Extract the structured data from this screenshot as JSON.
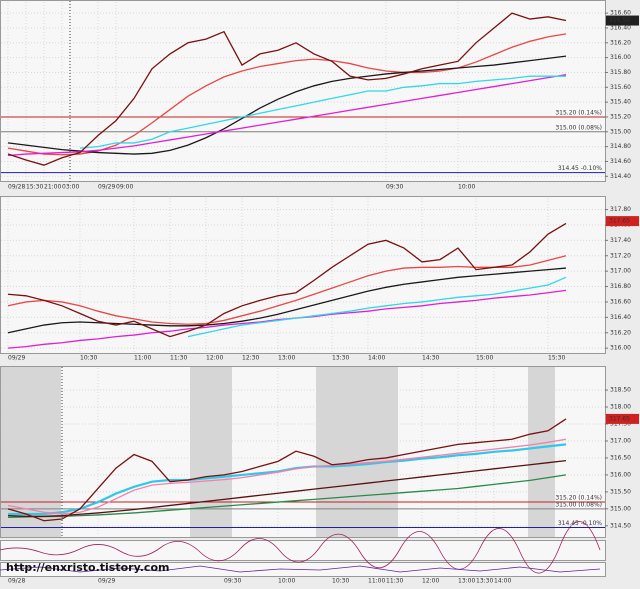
{
  "chart_data": [
    {
      "type": "line",
      "categories": [
        "09/28",
        "15:30",
        "21:00",
        "03:00",
        null,
        "09/29",
        "09:00",
        null,
        null,
        null,
        null,
        null,
        null,
        null,
        null,
        null,
        null,
        null,
        null,
        null,
        null,
        "09:30",
        null,
        null,
        null,
        "10:00",
        null,
        null,
        null,
        null,
        null,
        null
      ],
      "series": [
        {
          "color": "#e84848",
          "values": [
            314.78,
            314.74,
            314.7,
            314.69,
            314.7,
            314.74,
            314.82,
            314.95,
            315.12,
            315.3,
            315.48,
            315.62,
            315.74,
            315.82,
            315.88,
            315.92,
            315.96,
            315.98,
            315.96,
            315.92,
            315.86,
            315.82,
            315.8,
            315.8,
            315.82,
            315.86,
            315.94,
            316.04,
            316.14,
            316.22,
            316.28,
            316.32
          ]
        },
        {
          "color": "#1a1a1a",
          "values": [
            314.85,
            314.82,
            314.79,
            314.76,
            314.74,
            314.72,
            314.71,
            314.7,
            314.71,
            314.75,
            314.82,
            314.92,
            315.04,
            315.18,
            315.32,
            315.44,
            315.54,
            315.62,
            315.68,
            315.72,
            315.75,
            315.78,
            315.8,
            315.82,
            315.84,
            315.86,
            315.88,
            315.9,
            315.93,
            315.96,
            315.99,
            316.02
          ]
        },
        {
          "color": "#e020d0",
          "values": [
            314.68,
            314.7,
            314.71,
            314.72,
            314.73,
            314.75,
            314.78,
            314.81,
            314.85,
            314.89,
            314.93,
            314.97,
            315.01,
            315.05,
            315.09,
            315.13,
            315.17,
            315.21,
            315.25,
            315.29,
            315.33,
            315.37,
            315.41,
            315.45,
            315.49,
            315.53,
            315.57,
            315.61,
            315.65,
            315.69,
            315.73,
            315.77
          ]
        },
        {
          "color": "#30d8e8",
          "values": [
            null,
            null,
            null,
            null,
            314.78,
            314.8,
            314.85,
            314.85,
            314.9,
            315.0,
            315.05,
            315.1,
            315.15,
            315.2,
            315.25,
            315.3,
            315.35,
            315.4,
            315.45,
            315.5,
            315.55,
            315.55,
            315.6,
            315.62,
            315.65,
            315.65,
            315.68,
            315.7,
            315.72,
            315.75,
            315.75,
            315.75
          ]
        },
        {
          "color": "#7a1010",
          "values": [
            314.7,
            314.62,
            314.55,
            314.65,
            314.72,
            314.95,
            315.15,
            315.45,
            315.85,
            316.05,
            316.2,
            316.25,
            316.35,
            315.9,
            316.05,
            316.1,
            316.2,
            316.05,
            315.95,
            315.75,
            315.7,
            315.72,
            315.78,
            315.85,
            315.9,
            315.95,
            316.2,
            316.4,
            316.6,
            316.52,
            316.55,
            316.5
          ]
        }
      ],
      "ylim": [
        314.35,
        316.75
      ],
      "yticks": [
        {
          "value": 314.4,
          "label": "314.40"
        },
        {
          "value": 314.6,
          "label": "314.60"
        },
        {
          "value": 314.8,
          "label": "314.80"
        },
        {
          "value": 315,
          "label": "315.00"
        },
        {
          "value": 315.2,
          "label": "315.20"
        },
        {
          "value": 315.4,
          "label": "315.40"
        },
        {
          "value": 315.6,
          "label": "315.60"
        },
        {
          "value": 315.8,
          "label": "315.80"
        },
        {
          "value": 316,
          "label": "316.00"
        },
        {
          "value": 316.2,
          "label": "316.20"
        },
        {
          "value": 316.4,
          "label": "316.40"
        },
        {
          "value": 316.6,
          "label": "316.60"
        }
      ],
      "reference_lines": [
        {
          "value": 315.2,
          "label": "315.20 (0.14%)",
          "color": "#c02020"
        },
        {
          "value": 315,
          "label": "315.00 (0.08%)",
          "color": "#808080"
        },
        {
          "value": 314.45,
          "label": "314.45 -0.10%",
          "color": "#2020a0"
        }
      ],
      "price_tag": {
        "value": 316.5,
        "label": "316.50",
        "color": "#202020"
      },
      "grid": true
    },
    {
      "type": "line",
      "categories": [
        "09/29",
        null,
        null,
        null,
        "10:30",
        null,
        null,
        "11:00",
        null,
        "11:30",
        null,
        "12:00",
        null,
        "12:30",
        null,
        "13:00",
        null,
        null,
        "13:30",
        null,
        "14:00",
        null,
        null,
        "14:30",
        null,
        null,
        "15:00",
        null,
        null,
        null,
        "15:30",
        null
      ],
      "series": [
        {
          "color": "#e020d0",
          "values": [
            316.0,
            316.02,
            316.05,
            316.07,
            316.1,
            316.12,
            316.15,
            316.17,
            316.2,
            316.22,
            316.25,
            316.27,
            316.3,
            316.32,
            316.34,
            316.37,
            316.39,
            316.41,
            316.44,
            316.46,
            316.48,
            316.51,
            316.53,
            316.55,
            316.58,
            316.6,
            316.62,
            316.65,
            316.67,
            316.69,
            316.72,
            316.75
          ]
        },
        {
          "color": "#30d8e8",
          "values": [
            null,
            null,
            null,
            null,
            null,
            null,
            null,
            null,
            null,
            null,
            316.15,
            316.2,
            316.25,
            316.3,
            316.33,
            316.36,
            316.39,
            316.42,
            316.45,
            316.48,
            316.52,
            316.55,
            316.58,
            316.6,
            316.63,
            316.66,
            316.68,
            316.7,
            316.74,
            316.78,
            316.82,
            316.92
          ]
        },
        {
          "color": "#1a1a1a",
          "values": [
            316.2,
            316.25,
            316.3,
            316.33,
            316.34,
            316.33,
            316.32,
            316.31,
            316.3,
            316.29,
            316.29,
            316.3,
            316.32,
            316.35,
            316.39,
            316.44,
            316.5,
            316.56,
            316.62,
            316.68,
            316.74,
            316.79,
            316.83,
            316.86,
            316.89,
            316.92,
            316.94,
            316.96,
            316.98,
            317.0,
            317.02,
            317.04
          ]
        },
        {
          "color": "#e84848",
          "values": [
            316.55,
            316.6,
            316.62,
            316.6,
            316.55,
            316.48,
            316.42,
            316.38,
            316.34,
            316.32,
            316.31,
            316.32,
            316.36,
            316.42,
            316.48,
            316.55,
            316.62,
            316.7,
            316.78,
            316.86,
            316.94,
            317.0,
            317.04,
            317.05,
            317.05,
            317.06,
            317.05,
            317.05,
            317.05,
            317.08,
            317.14,
            317.2
          ]
        },
        {
          "color": "#7a1010",
          "values": [
            316.7,
            316.68,
            316.62,
            316.55,
            316.45,
            316.35,
            316.3,
            316.35,
            316.25,
            316.15,
            316.22,
            316.3,
            316.45,
            316.55,
            316.62,
            316.68,
            316.72,
            316.88,
            317.05,
            317.2,
            317.35,
            317.4,
            317.3,
            317.12,
            317.15,
            317.3,
            317.02,
            317.05,
            317.08,
            317.25,
            317.48,
            317.62
          ]
        }
      ],
      "ylim": [
        315.95,
        317.95
      ],
      "yticks": [
        {
          "value": 316,
          "label": "316.00"
        },
        {
          "value": 316.2,
          "label": "316.20"
        },
        {
          "value": 316.4,
          "label": "316.40"
        },
        {
          "value": 316.6,
          "label": "316.60"
        },
        {
          "value": 316.8,
          "label": "316.80"
        },
        {
          "value": 317,
          "label": "317.00"
        },
        {
          "value": 317.2,
          "label": "317.20"
        },
        {
          "value": 317.4,
          "label": "317.40"
        },
        {
          "value": 317.6,
          "label": "317.60"
        },
        {
          "value": 317.8,
          "label": "317.80"
        }
      ],
      "price_tag": {
        "value": 317.65,
        "label": "317.65",
        "color": "#d02020"
      },
      "grid": true
    },
    {
      "type": "line",
      "categories": [
        "09/28",
        null,
        null,
        null,
        null,
        "09/29",
        null,
        null,
        null,
        null,
        null,
        null,
        "09:30",
        null,
        null,
        "10:00",
        null,
        null,
        "10:30",
        null,
        "11:00",
        "11:30",
        null,
        "12:00",
        null,
        "13:00",
        "13:30",
        "14:00",
        null,
        null,
        null,
        null
      ],
      "series": [
        {
          "color": "#2a8a4a",
          "values": [
            314.75,
            314.76,
            314.77,
            314.78,
            314.8,
            314.82,
            314.85,
            314.88,
            314.92,
            314.96,
            315.0,
            315.04,
            315.08,
            315.12,
            315.16,
            315.2,
            315.24,
            315.28,
            315.32,
            315.36,
            315.4,
            315.44,
            315.48,
            315.52,
            315.56,
            315.6,
            315.66,
            315.72,
            315.78,
            315.84,
            315.92,
            316.0
          ]
        },
        {
          "color": "#5a1010",
          "values": [
            314.8,
            314.78,
            314.78,
            314.8,
            314.84,
            314.88,
            314.93,
            314.98,
            315.04,
            315.1,
            315.16,
            315.22,
            315.28,
            315.34,
            315.4,
            315.46,
            315.52,
            315.58,
            315.64,
            315.7,
            315.76,
            315.82,
            315.88,
            315.94,
            316.0,
            316.06,
            316.12,
            316.18,
            316.24,
            316.3,
            316.36,
            316.42
          ]
        },
        {
          "color": "#30c8e8",
          "values": [
            314.85,
            314.85,
            314.85,
            314.9,
            315.0,
            315.2,
            315.45,
            315.65,
            315.8,
            315.85,
            315.85,
            315.9,
            315.95,
            316.0,
            316.05,
            316.1,
            316.2,
            316.25,
            316.25,
            316.28,
            316.32,
            316.38,
            316.42,
            316.48,
            316.52,
            316.58,
            316.62,
            316.68,
            316.72,
            316.78,
            316.84,
            316.9
          ]
        },
        {
          "color": "#f080b0",
          "values": [
            315.1,
            315.0,
            314.9,
            314.85,
            314.9,
            315.05,
            315.3,
            315.55,
            315.7,
            315.75,
            315.78,
            315.82,
            315.86,
            315.92,
            316.0,
            316.08,
            316.18,
            316.25,
            316.28,
            316.32,
            316.36,
            316.4,
            316.46,
            316.52,
            316.58,
            316.64,
            316.7,
            316.76,
            316.82,
            316.88,
            316.96,
            317.05
          ]
        },
        {
          "color": "#7a1010",
          "values": [
            315.0,
            314.85,
            314.65,
            314.7,
            315.0,
            315.6,
            316.2,
            316.6,
            316.4,
            315.8,
            315.85,
            315.95,
            316.0,
            316.1,
            316.25,
            316.4,
            316.7,
            316.55,
            316.3,
            316.35,
            316.45,
            316.5,
            316.6,
            316.7,
            316.8,
            316.9,
            316.95,
            317.0,
            317.05,
            317.2,
            317.3,
            317.65
          ]
        }
      ],
      "ylim": [
        314.2,
        319.15
      ],
      "yticks": [
        {
          "value": 314.5,
          "label": "314.50"
        },
        {
          "value": 315,
          "label": "315.00"
        },
        {
          "value": 315.5,
          "label": "315.50"
        },
        {
          "value": 316,
          "label": "316.00"
        },
        {
          "value": 316.5,
          "label": "316.50"
        },
        {
          "value": 317,
          "label": "317.00"
        },
        {
          "value": 317.5,
          "label": "317.50"
        },
        {
          "value": 318,
          "label": "318.00"
        },
        {
          "value": 318.5,
          "label": "318.50"
        }
      ],
      "reference_lines": [
        {
          "value": 315.2,
          "label": "315.20 (0.14%)",
          "color": "#c02020"
        },
        {
          "value": 315,
          "label": "315.00 (0.08%)",
          "color": "#808080"
        },
        {
          "value": 314.45,
          "label": "314.45 -0.10%",
          "color": "#2020a0"
        }
      ],
      "price_tag": {
        "value": 317.65,
        "label": "317.65",
        "color": "#d02020"
      },
      "grid": true
    }
  ],
  "watermark": "http://enxristo.tistory.com"
}
